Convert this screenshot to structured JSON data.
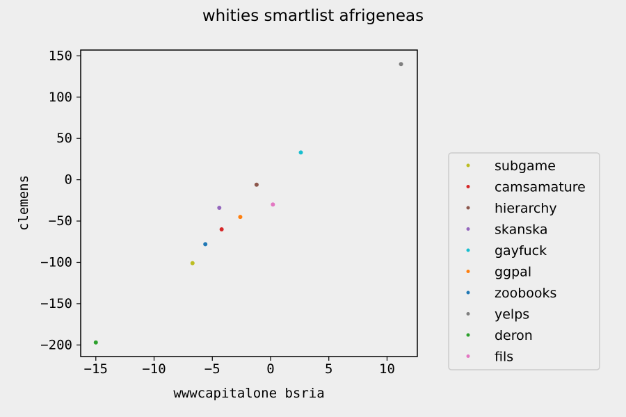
{
  "chart_data": {
    "type": "scatter",
    "title": "whities smartlist afrigeneas",
    "xlabel": "wwwcapitalone bsria",
    "ylabel": "clemens",
    "xlim": [
      -16.3,
      12.6
    ],
    "ylim": [
      -214,
      157
    ],
    "xticks": [
      -15,
      -10,
      -5,
      0,
      5,
      10
    ],
    "yticks": [
      -200,
      -150,
      -100,
      -50,
      0,
      50,
      100,
      150
    ],
    "grid": false,
    "legend_position": "right",
    "series": [
      {
        "name": "subgame",
        "color": "#bcbd22",
        "x": -6.7,
        "y": -101
      },
      {
        "name": "camsamature",
        "color": "#d62728",
        "x": -4.2,
        "y": -60
      },
      {
        "name": "hierarchy",
        "color": "#8c564b",
        "x": -1.2,
        "y": -6
      },
      {
        "name": "skanska",
        "color": "#9467bd",
        "x": -4.4,
        "y": -34
      },
      {
        "name": "gayfuck",
        "color": "#17becf",
        "x": 2.6,
        "y": 33
      },
      {
        "name": "ggpal",
        "color": "#ff7f0e",
        "x": -2.6,
        "y": -45
      },
      {
        "name": "zoobooks",
        "color": "#1f77b4",
        "x": -5.6,
        "y": -78
      },
      {
        "name": "yelps",
        "color": "#7f7f7f",
        "x": 11.2,
        "y": 140
      },
      {
        "name": "deron",
        "color": "#2ca02c",
        "x": -15.0,
        "y": -197
      },
      {
        "name": "fils",
        "color": "#e377c2",
        "x": 0.2,
        "y": -30
      }
    ]
  }
}
